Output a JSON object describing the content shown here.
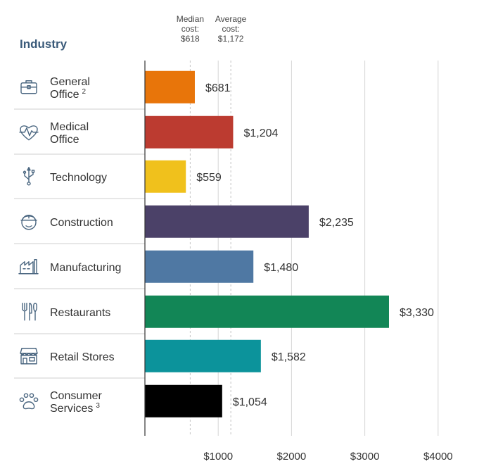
{
  "chart_data": {
    "type": "bar",
    "orientation": "horizontal",
    "header": "Industry",
    "categories": [
      {
        "line1": "General",
        "line2": "Office",
        "sup": "2",
        "icon": "briefcase-icon"
      },
      {
        "line1": "Medical",
        "line2": "Office",
        "sup": "",
        "icon": "heart-pulse-icon"
      },
      {
        "line1": "Technology",
        "line2": "",
        "sup": "",
        "icon": "usb-icon"
      },
      {
        "line1": "Construction",
        "line2": "",
        "sup": "",
        "icon": "hard-hat-worker-icon"
      },
      {
        "line1": "Manufacturing",
        "line2": "",
        "sup": "",
        "icon": "factory-icon"
      },
      {
        "line1": "Restaurants",
        "line2": "",
        "sup": "",
        "icon": "fork-knife-icon"
      },
      {
        "line1": "Retail Stores",
        "line2": "",
        "sup": "",
        "icon": "storefront-icon"
      },
      {
        "line1": "Consumer",
        "line2": "Services",
        "sup": "3",
        "icon": "paw-icon"
      }
    ],
    "values": [
      681,
      1204,
      559,
      2235,
      1480,
      3330,
      1582,
      1054
    ],
    "value_labels": [
      "$681",
      "$1,204",
      "$559",
      "$2,235",
      "$1,480",
      "$3,330",
      "$1,582",
      "$1,054"
    ],
    "colors": [
      "#e8750a",
      "#bc3b30",
      "#f0c11c",
      "#4b4168",
      "#4f78a3",
      "#128656",
      "#0c939b",
      "#000000"
    ],
    "x_ticks": [
      1000,
      2000,
      3000,
      4000
    ],
    "x_tick_labels": [
      "$1000",
      "$2000",
      "$3000",
      "$4000"
    ],
    "xlim": [
      0,
      4500
    ],
    "grid": true,
    "reference_lines": [
      {
        "value": 618,
        "label_lines": [
          "Median",
          "cost:",
          "$618"
        ]
      },
      {
        "value": 1172,
        "label_lines": [
          "Average",
          "cost:",
          "$1,172"
        ]
      }
    ]
  }
}
